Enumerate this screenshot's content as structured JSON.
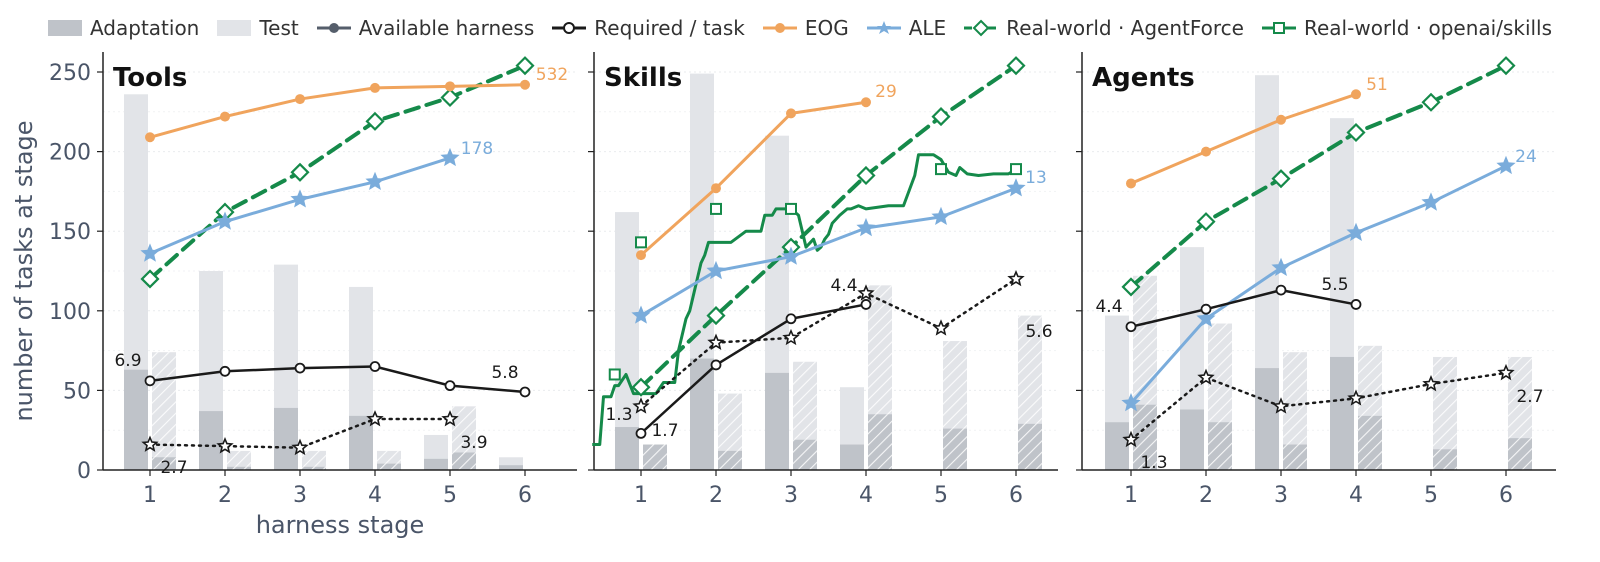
{
  "legend": {
    "adaptation": "Adaptation",
    "test": "Test",
    "available": "Available harness",
    "required": "Required / task",
    "eog": "EOG",
    "ale": "ALE",
    "rw_agentforce": "Real-world · AgentForce",
    "rw_openai": "Real-world · openai/skills"
  },
  "colors": {
    "adaptation": "#bfc3c9",
    "test": "#e2e4e8",
    "available": "#555e6b",
    "required": "#1a1a1a",
    "eog": "#f0a45d",
    "ale": "#7aacdb",
    "rw": "#158a4a",
    "axis_text": "#4a5568"
  },
  "chart_data": {
    "type": "bar",
    "ylabel": "number of tasks at stage",
    "xlabel": "harness stage",
    "ylim": [
      0,
      260
    ],
    "yticks": [
      0,
      50,
      100,
      150,
      200,
      250
    ],
    "categories": [
      1,
      2,
      3,
      4,
      5,
      6
    ],
    "panels": [
      {
        "title": "Tools",
        "adaptation": [
          63,
          37,
          39,
          34,
          7,
          3
        ],
        "test": [
          236,
          125,
          129,
          115,
          22,
          8
        ],
        "adaptation_hatched": [
          8,
          2,
          2,
          4,
          11,
          0
        ],
        "test_hatched": [
          74,
          12,
          12,
          12,
          40,
          0
        ],
        "required": [
          56,
          62,
          64,
          65,
          53,
          49
        ],
        "available": [
          16,
          15,
          14,
          32,
          32,
          null
        ],
        "eog": [
          209,
          222,
          233,
          240,
          241,
          242
        ],
        "ale": [
          136,
          156,
          170,
          181,
          196,
          null
        ],
        "rw_agentforce": [
          120,
          162,
          187,
          219,
          234,
          254
        ],
        "labels": [
          {
            "text": "532",
            "series": "eog"
          },
          {
            "text": "178",
            "series": "ale"
          },
          {
            "text": "6.9",
            "series": "required"
          },
          {
            "text": "5.8",
            "series": "required"
          },
          {
            "text": "2.7",
            "series": "available"
          },
          {
            "text": "3.9",
            "series": "available"
          }
        ]
      },
      {
        "title": "Skills",
        "adaptation": [
          27,
          70,
          61,
          16,
          0,
          0
        ],
        "test": [
          162,
          249,
          210,
          52,
          0,
          0
        ],
        "adaptation_hatched": [
          16,
          12,
          19,
          35,
          26,
          29
        ],
        "test_hatched": [
          16,
          48,
          68,
          116,
          81,
          97
        ],
        "required": [
          23,
          66,
          95,
          104,
          null,
          null
        ],
        "available": [
          40,
          80,
          83,
          111,
          89,
          120
        ],
        "eog": [
          135,
          177,
          224,
          231,
          null,
          null
        ],
        "ale": [
          97,
          125,
          134,
          152,
          159,
          177
        ],
        "rw_agentforce": [
          52,
          97,
          140,
          185,
          222,
          254
        ],
        "rw_openai_x": [
          0.35,
          0.45,
          0.5,
          0.6,
          0.65,
          0.7,
          0.8,
          0.9,
          1.0,
          1.1,
          1.2,
          1.3,
          1.45,
          1.5,
          1.6,
          1.65,
          1.7,
          1.75,
          1.8,
          1.85,
          1.9,
          1.95,
          2.0,
          2.2,
          2.4,
          2.6,
          2.65,
          2.75,
          2.8,
          2.9,
          3.0,
          3.1,
          3.2,
          3.3,
          3.35,
          3.4,
          3.45,
          3.5,
          3.55,
          3.65,
          3.75,
          3.8,
          3.9,
          4.0,
          4.3,
          4.5,
          4.65,
          4.7,
          4.9,
          5.0,
          5.1,
          5.2,
          5.25,
          5.35,
          5.5,
          5.7,
          5.9,
          6.0
        ],
        "rw_openai_y": [
          16,
          16,
          46,
          46,
          53,
          53,
          60,
          48,
          48,
          48,
          48,
          55,
          55,
          75,
          95,
          100,
          110,
          120,
          130,
          135,
          143,
          143,
          143,
          143,
          150,
          150,
          160,
          160,
          164,
          164,
          164,
          160,
          140,
          145,
          138,
          140,
          145,
          148,
          155,
          160,
          164,
          164,
          166,
          164,
          166,
          166,
          185,
          198,
          198,
          195,
          187,
          185,
          190,
          186,
          185,
          186,
          186,
          189
        ],
        "rw_openai_markers": [
          {
            "x": 0.65,
            "y": 60
          },
          {
            "x": 1.0,
            "y": 143
          },
          {
            "x": 2.0,
            "y": 164
          },
          {
            "x": 3.0,
            "y": 164
          },
          {
            "x": 5.0,
            "y": 189
          },
          {
            "x": 6.0,
            "y": 189
          }
        ],
        "labels": [
          {
            "text": "29",
            "series": "eog"
          },
          {
            "text": "13",
            "series": "rw_openai"
          },
          {
            "text": "4.4",
            "series": "required"
          },
          {
            "text": "5.6",
            "series": "available"
          },
          {
            "text": "1.3",
            "series": "available"
          },
          {
            "text": "1.7",
            "series": "required"
          }
        ]
      },
      {
        "title": "Agents",
        "adaptation": [
          30,
          38,
          64,
          71,
          0,
          0
        ],
        "test": [
          97,
          140,
          248,
          221,
          0,
          0
        ],
        "adaptation_hatched": [
          41,
          30,
          16,
          34,
          13,
          20
        ],
        "test_hatched": [
          122,
          92,
          74,
          78,
          71,
          71
        ],
        "required": [
          90,
          101,
          113,
          104,
          null,
          null
        ],
        "available": [
          19,
          58,
          40,
          45,
          54,
          61
        ],
        "eog": [
          180,
          200,
          220,
          236,
          null,
          null
        ],
        "ale": [
          42,
          95,
          127,
          149,
          168,
          191
        ],
        "rw_agentforce": [
          115,
          156,
          183,
          212,
          231,
          254
        ],
        "labels": [
          {
            "text": "51",
            "series": "eog"
          },
          {
            "text": "24",
            "series": "ale"
          },
          {
            "text": "4.4",
            "series": "required"
          },
          {
            "text": "5.5",
            "series": "required"
          },
          {
            "text": "2.7",
            "series": "available"
          },
          {
            "text": "1.3",
            "series": "available"
          }
        ]
      }
    ]
  }
}
